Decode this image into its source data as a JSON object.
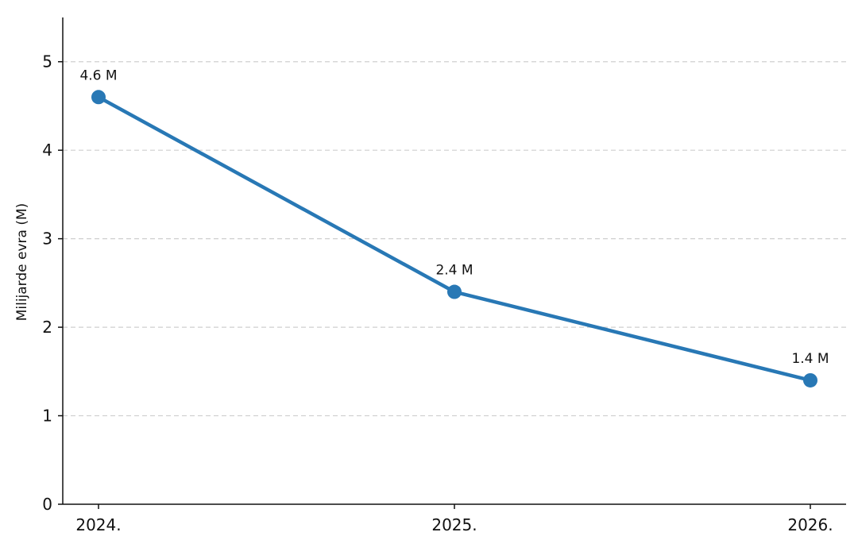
{
  "chart_data": {
    "type": "line",
    "title": "",
    "xlabel": "",
    "ylabel": "Milijarde evra (M)",
    "categories": [
      "2024.",
      "2025.",
      "2026."
    ],
    "series": [
      {
        "values": [
          4.6,
          2.4,
          1.4
        ],
        "data_labels": [
          "4.6 M",
          "2.4 M",
          "1.4 M"
        ],
        "color": "#2878b5",
        "marker": "circle"
      }
    ],
    "ylim": [
      0,
      5.5
    ],
    "yticks": [
      0,
      1,
      2,
      3,
      4,
      5
    ],
    "grid": "horizontal-dashed",
    "legend": "none"
  }
}
